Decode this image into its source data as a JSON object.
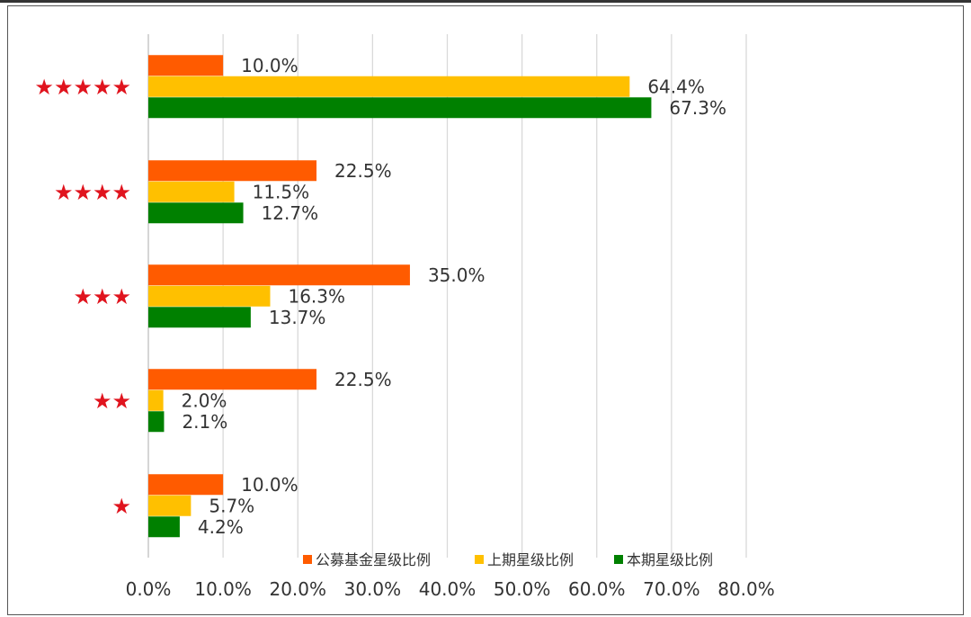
{
  "chart_data": {
    "type": "bar",
    "orientation": "horizontal",
    "categories": [
      "★★★★★",
      "★★★★",
      "★★★",
      "★★",
      "★"
    ],
    "series": [
      {
        "name": "公募基金星级比例",
        "color": "#ff5b00",
        "values": [
          10.0,
          22.5,
          35.0,
          22.5,
          10.0
        ],
        "labels": [
          "10.0%",
          "22.5%",
          "35.0%",
          "22.5%",
          "10.0%"
        ]
      },
      {
        "name": "上期星级比例",
        "color": "#ffc000",
        "values": [
          64.4,
          11.5,
          16.3,
          2.0,
          5.7
        ],
        "labels": [
          "64.4%",
          "11.5%",
          "16.3%",
          "2.0%",
          "5.7%"
        ]
      },
      {
        "name": "本期星级比例",
        "color": "#008000",
        "values": [
          67.3,
          12.7,
          13.7,
          2.1,
          4.2
        ],
        "labels": [
          "67.3%",
          "12.7%",
          "13.7%",
          "2.1%",
          "4.2%"
        ]
      }
    ],
    "xticks": [
      "0.0%",
      "10.0%",
      "20.0%",
      "30.0%",
      "40.0%",
      "50.0%",
      "60.0%",
      "70.0%",
      "80.0%"
    ],
    "xlim": [
      0,
      80
    ],
    "grid": true,
    "legend_position": "bottom",
    "title": "",
    "xlabel": "",
    "ylabel": ""
  }
}
